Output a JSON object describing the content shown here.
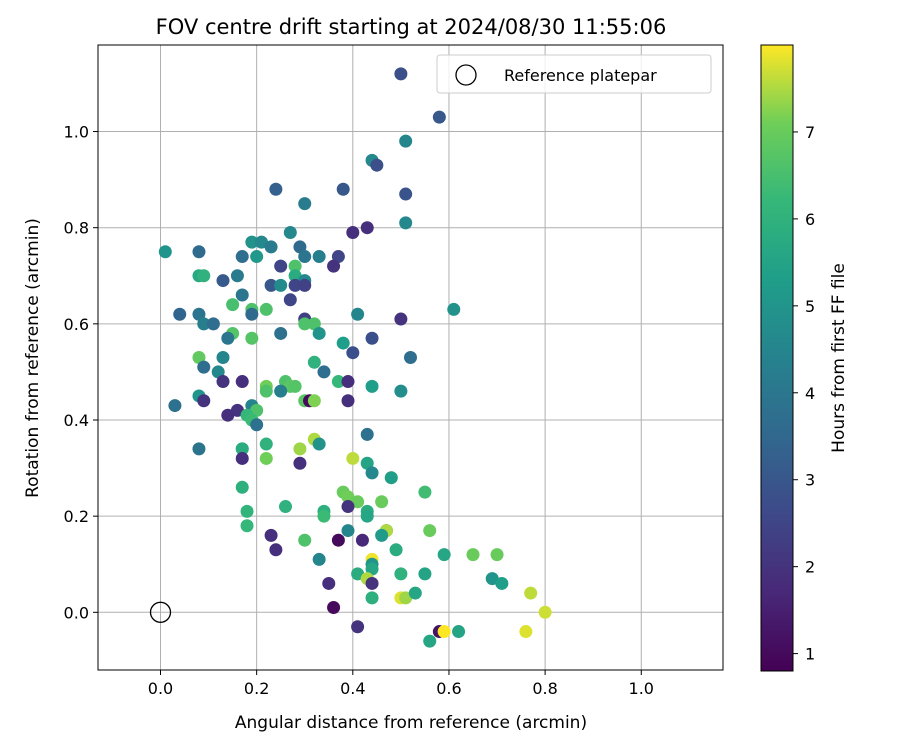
{
  "chart_data": {
    "type": "scatter",
    "title": "FOV centre drift starting at 2024/08/30 11:55:06",
    "xlabel": "Angular distance from reference (arcmin)",
    "ylabel": "Rotation from reference (arcmin)",
    "xlim": [
      -0.13,
      1.17
    ],
    "ylim": [
      -0.12,
      1.18
    ],
    "xticks": [
      "0.0",
      "0.2",
      "0.4",
      "0.6",
      "0.8",
      "1.0"
    ],
    "xtick_values": [
      0.0,
      0.2,
      0.4,
      0.6,
      0.8,
      1.0
    ],
    "yticks": [
      "0.0",
      "0.2",
      "0.4",
      "0.6",
      "0.8",
      "1.0"
    ],
    "ytick_values": [
      0.0,
      0.2,
      0.4,
      0.6,
      0.8,
      1.0
    ],
    "grid": true,
    "legend": {
      "position": "top-right",
      "entries": [
        "Reference platepar"
      ]
    },
    "reference_point": {
      "x": 0.0,
      "y": 0.0,
      "label": "Reference platepar"
    },
    "colorbar": {
      "label": "Hours from first FF file",
      "min": 0.8,
      "max": 8.0,
      "ticks": [
        "1",
        "2",
        "3",
        "4",
        "5",
        "6",
        "7"
      ],
      "tick_values": [
        1,
        2,
        3,
        4,
        5,
        6,
        7
      ],
      "colormap": "viridis"
    },
    "points": [
      {
        "x": 0.5,
        "y": 1.12,
        "h": 2.8
      },
      {
        "x": 0.58,
        "y": 1.03,
        "h": 3.0
      },
      {
        "x": 0.51,
        "y": 0.98,
        "h": 4.5
      },
      {
        "x": 0.44,
        "y": 0.94,
        "h": 4.6
      },
      {
        "x": 0.45,
        "y": 0.93,
        "h": 2.8
      },
      {
        "x": 0.24,
        "y": 0.88,
        "h": 3.3
      },
      {
        "x": 0.38,
        "y": 0.88,
        "h": 3.0
      },
      {
        "x": 0.51,
        "y": 0.87,
        "h": 2.9
      },
      {
        "x": 0.3,
        "y": 0.85,
        "h": 4.2
      },
      {
        "x": 0.51,
        "y": 0.81,
        "h": 4.6
      },
      {
        "x": 0.43,
        "y": 0.8,
        "h": 1.9
      },
      {
        "x": 0.27,
        "y": 0.79,
        "h": 4.6
      },
      {
        "x": 0.4,
        "y": 0.79,
        "h": 1.9
      },
      {
        "x": 0.19,
        "y": 0.77,
        "h": 4.9
      },
      {
        "x": 0.21,
        "y": 0.77,
        "h": 4.6
      },
      {
        "x": 0.23,
        "y": 0.76,
        "h": 4.2
      },
      {
        "x": 0.29,
        "y": 0.76,
        "h": 3.6
      },
      {
        "x": 0.08,
        "y": 0.75,
        "h": 3.6
      },
      {
        "x": 0.01,
        "y": 0.75,
        "h": 5.0
      },
      {
        "x": 0.17,
        "y": 0.74,
        "h": 3.7
      },
      {
        "x": 0.2,
        "y": 0.74,
        "h": 5.1
      },
      {
        "x": 0.3,
        "y": 0.74,
        "h": 4.0
      },
      {
        "x": 0.33,
        "y": 0.74,
        "h": 4.3
      },
      {
        "x": 0.37,
        "y": 0.74,
        "h": 2.5
      },
      {
        "x": 0.28,
        "y": 0.72,
        "h": 6.6
      },
      {
        "x": 0.25,
        "y": 0.72,
        "h": 2.5
      },
      {
        "x": 0.36,
        "y": 0.72,
        "h": 2.0
      },
      {
        "x": 0.08,
        "y": 0.7,
        "h": 5.7
      },
      {
        "x": 0.09,
        "y": 0.7,
        "h": 6.0
      },
      {
        "x": 0.28,
        "y": 0.7,
        "h": 5.8
      },
      {
        "x": 0.16,
        "y": 0.7,
        "h": 4.2
      },
      {
        "x": 0.13,
        "y": 0.69,
        "h": 3.1
      },
      {
        "x": 0.3,
        "y": 0.69,
        "h": 4.6
      },
      {
        "x": 0.28,
        "y": 0.68,
        "h": 2.5
      },
      {
        "x": 0.23,
        "y": 0.68,
        "h": 3.0
      },
      {
        "x": 0.25,
        "y": 0.68,
        "h": 4.7
      },
      {
        "x": 0.3,
        "y": 0.68,
        "h": 2.4
      },
      {
        "x": 0.17,
        "y": 0.66,
        "h": 4.0
      },
      {
        "x": 0.27,
        "y": 0.65,
        "h": 2.5
      },
      {
        "x": 0.15,
        "y": 0.64,
        "h": 6.5
      },
      {
        "x": 0.19,
        "y": 0.63,
        "h": 6.6
      },
      {
        "x": 0.22,
        "y": 0.63,
        "h": 6.6
      },
      {
        "x": 0.04,
        "y": 0.62,
        "h": 3.4
      },
      {
        "x": 0.08,
        "y": 0.62,
        "h": 4.0
      },
      {
        "x": 0.41,
        "y": 0.62,
        "h": 4.5
      },
      {
        "x": 0.61,
        "y": 0.63,
        "h": 4.9
      },
      {
        "x": 0.19,
        "y": 0.62,
        "h": 3.6
      },
      {
        "x": 0.3,
        "y": 0.61,
        "h": 2.3
      },
      {
        "x": 0.5,
        "y": 0.61,
        "h": 2.0
      },
      {
        "x": 0.09,
        "y": 0.6,
        "h": 4.3
      },
      {
        "x": 0.11,
        "y": 0.6,
        "h": 3.7
      },
      {
        "x": 0.3,
        "y": 0.6,
        "h": 6.6
      },
      {
        "x": 0.32,
        "y": 0.6,
        "h": 6.6
      },
      {
        "x": 0.15,
        "y": 0.58,
        "h": 6.7
      },
      {
        "x": 0.25,
        "y": 0.58,
        "h": 3.8
      },
      {
        "x": 0.33,
        "y": 0.58,
        "h": 5.0
      },
      {
        "x": 0.14,
        "y": 0.57,
        "h": 4.0
      },
      {
        "x": 0.19,
        "y": 0.57,
        "h": 6.7
      },
      {
        "x": 0.38,
        "y": 0.56,
        "h": 5.3
      },
      {
        "x": 0.44,
        "y": 0.57,
        "h": 2.8
      },
      {
        "x": 0.4,
        "y": 0.54,
        "h": 2.8
      },
      {
        "x": 0.13,
        "y": 0.53,
        "h": 4.5
      },
      {
        "x": 0.08,
        "y": 0.53,
        "h": 6.9
      },
      {
        "x": 0.52,
        "y": 0.53,
        "h": 3.7
      },
      {
        "x": 0.32,
        "y": 0.52,
        "h": 6.0
      },
      {
        "x": 0.09,
        "y": 0.51,
        "h": 3.7
      },
      {
        "x": 0.34,
        "y": 0.5,
        "h": 3.7
      },
      {
        "x": 0.12,
        "y": 0.5,
        "h": 4.6
      },
      {
        "x": 0.13,
        "y": 0.48,
        "h": 2.0
      },
      {
        "x": 0.17,
        "y": 0.48,
        "h": 1.9
      },
      {
        "x": 0.26,
        "y": 0.48,
        "h": 6.6
      },
      {
        "x": 0.27,
        "y": 0.47,
        "h": 6.8
      },
      {
        "x": 0.22,
        "y": 0.47,
        "h": 7.1
      },
      {
        "x": 0.28,
        "y": 0.47,
        "h": 6.7
      },
      {
        "x": 0.37,
        "y": 0.48,
        "h": 6.2
      },
      {
        "x": 0.39,
        "y": 0.48,
        "h": 1.9
      },
      {
        "x": 0.44,
        "y": 0.47,
        "h": 5.3
      },
      {
        "x": 0.22,
        "y": 0.46,
        "h": 6.6
      },
      {
        "x": 0.25,
        "y": 0.46,
        "h": 4.3
      },
      {
        "x": 0.5,
        "y": 0.46,
        "h": 4.8
      },
      {
        "x": 0.08,
        "y": 0.45,
        "h": 5.0
      },
      {
        "x": 0.09,
        "y": 0.44,
        "h": 2.0
      },
      {
        "x": 0.3,
        "y": 0.44,
        "h": 6.8
      },
      {
        "x": 0.31,
        "y": 0.44,
        "h": 1.0
      },
      {
        "x": 0.32,
        "y": 0.44,
        "h": 7.2
      },
      {
        "x": 0.39,
        "y": 0.44,
        "h": 1.9
      },
      {
        "x": 0.03,
        "y": 0.43,
        "h": 3.8
      },
      {
        "x": 0.19,
        "y": 0.43,
        "h": 4.5
      },
      {
        "x": 0.16,
        "y": 0.42,
        "h": 2.0
      },
      {
        "x": 0.2,
        "y": 0.42,
        "h": 6.6
      },
      {
        "x": 0.14,
        "y": 0.41,
        "h": 1.9
      },
      {
        "x": 0.18,
        "y": 0.41,
        "h": 6.2
      },
      {
        "x": 0.19,
        "y": 0.4,
        "h": 6.3
      },
      {
        "x": 0.2,
        "y": 0.39,
        "h": 3.8
      },
      {
        "x": 0.43,
        "y": 0.37,
        "h": 3.8
      },
      {
        "x": 0.32,
        "y": 0.36,
        "h": 7.5
      },
      {
        "x": 0.08,
        "y": 0.34,
        "h": 3.9
      },
      {
        "x": 0.22,
        "y": 0.35,
        "h": 6.0
      },
      {
        "x": 0.17,
        "y": 0.34,
        "h": 6.3
      },
      {
        "x": 0.17,
        "y": 0.34,
        "h": 5.8
      },
      {
        "x": 0.33,
        "y": 0.35,
        "h": 4.9
      },
      {
        "x": 0.29,
        "y": 0.34,
        "h": 7.4
      },
      {
        "x": 0.17,
        "y": 0.32,
        "h": 1.9
      },
      {
        "x": 0.22,
        "y": 0.32,
        "h": 7.1
      },
      {
        "x": 0.4,
        "y": 0.32,
        "h": 7.6
      },
      {
        "x": 0.29,
        "y": 0.31,
        "h": 1.9
      },
      {
        "x": 0.43,
        "y": 0.31,
        "h": 5.5
      },
      {
        "x": 0.44,
        "y": 0.29,
        "h": 4.6
      },
      {
        "x": 0.48,
        "y": 0.28,
        "h": 7.8
      },
      {
        "x": 0.48,
        "y": 0.28,
        "h": 5.3
      },
      {
        "x": 0.17,
        "y": 0.26,
        "h": 5.9
      },
      {
        "x": 0.38,
        "y": 0.25,
        "h": 7.0
      },
      {
        "x": 0.39,
        "y": 0.24,
        "h": 7.1
      },
      {
        "x": 0.55,
        "y": 0.25,
        "h": 6.4
      },
      {
        "x": 0.41,
        "y": 0.23,
        "h": 7.0
      },
      {
        "x": 0.46,
        "y": 0.23,
        "h": 7.0
      },
      {
        "x": 0.26,
        "y": 0.22,
        "h": 6.0
      },
      {
        "x": 0.39,
        "y": 0.22,
        "h": 2.0
      },
      {
        "x": 0.34,
        "y": 0.21,
        "h": 5.9
      },
      {
        "x": 0.43,
        "y": 0.21,
        "h": 5.8
      },
      {
        "x": 0.18,
        "y": 0.21,
        "h": 6.1
      },
      {
        "x": 0.34,
        "y": 0.2,
        "h": 6.3
      },
      {
        "x": 0.43,
        "y": 0.2,
        "h": 5.6
      },
      {
        "x": 0.18,
        "y": 0.18,
        "h": 6.2
      },
      {
        "x": 0.47,
        "y": 0.17,
        "h": 4.8
      },
      {
        "x": 0.47,
        "y": 0.17,
        "h": 7.5
      },
      {
        "x": 0.56,
        "y": 0.17,
        "h": 7.0
      },
      {
        "x": 0.39,
        "y": 0.17,
        "h": 4.5
      },
      {
        "x": 0.23,
        "y": 0.16,
        "h": 1.9
      },
      {
        "x": 0.46,
        "y": 0.16,
        "h": 5.2
      },
      {
        "x": 0.37,
        "y": 0.15,
        "h": 1.0
      },
      {
        "x": 0.3,
        "y": 0.15,
        "h": 6.6
      },
      {
        "x": 0.42,
        "y": 0.15,
        "h": 1.7
      },
      {
        "x": 0.49,
        "y": 0.13,
        "h": 5.8
      },
      {
        "x": 0.24,
        "y": 0.13,
        "h": 1.9
      },
      {
        "x": 0.59,
        "y": 0.12,
        "h": 5.6
      },
      {
        "x": 0.65,
        "y": 0.12,
        "h": 7.0
      },
      {
        "x": 0.7,
        "y": 0.12,
        "h": 7.0
      },
      {
        "x": 0.33,
        "y": 0.11,
        "h": 4.5
      },
      {
        "x": 0.44,
        "y": 0.11,
        "h": 7.9
      },
      {
        "x": 0.44,
        "y": 0.1,
        "h": 5.0
      },
      {
        "x": 0.44,
        "y": 0.09,
        "h": 5.6
      },
      {
        "x": 0.5,
        "y": 0.08,
        "h": 6.0
      },
      {
        "x": 0.41,
        "y": 0.08,
        "h": 5.8
      },
      {
        "x": 0.43,
        "y": 0.07,
        "h": 7.5
      },
      {
        "x": 0.55,
        "y": 0.08,
        "h": 5.5
      },
      {
        "x": 0.69,
        "y": 0.07,
        "h": 5.0
      },
      {
        "x": 0.44,
        "y": 0.06,
        "h": 2.0
      },
      {
        "x": 0.35,
        "y": 0.06,
        "h": 1.9
      },
      {
        "x": 0.71,
        "y": 0.06,
        "h": 5.3
      },
      {
        "x": 0.77,
        "y": 0.04,
        "h": 7.6
      },
      {
        "x": 0.5,
        "y": 0.03,
        "h": 7.8
      },
      {
        "x": 0.51,
        "y": 0.03,
        "h": 7.4
      },
      {
        "x": 0.53,
        "y": 0.04,
        "h": 5.6
      },
      {
        "x": 0.44,
        "y": 0.03,
        "h": 5.9
      },
      {
        "x": 0.36,
        "y": 0.01,
        "h": 1.0
      },
      {
        "x": 0.8,
        "y": 0.0,
        "h": 7.7
      },
      {
        "x": 0.41,
        "y": -0.03,
        "h": 2.0
      },
      {
        "x": 0.58,
        "y": -0.04,
        "h": 1.2
      },
      {
        "x": 0.59,
        "y": -0.04,
        "h": 8.0
      },
      {
        "x": 0.62,
        "y": -0.04,
        "h": 5.5
      },
      {
        "x": 0.76,
        "y": -0.04,
        "h": 7.8
      },
      {
        "x": 0.56,
        "y": -0.06,
        "h": 5.6
      }
    ]
  }
}
